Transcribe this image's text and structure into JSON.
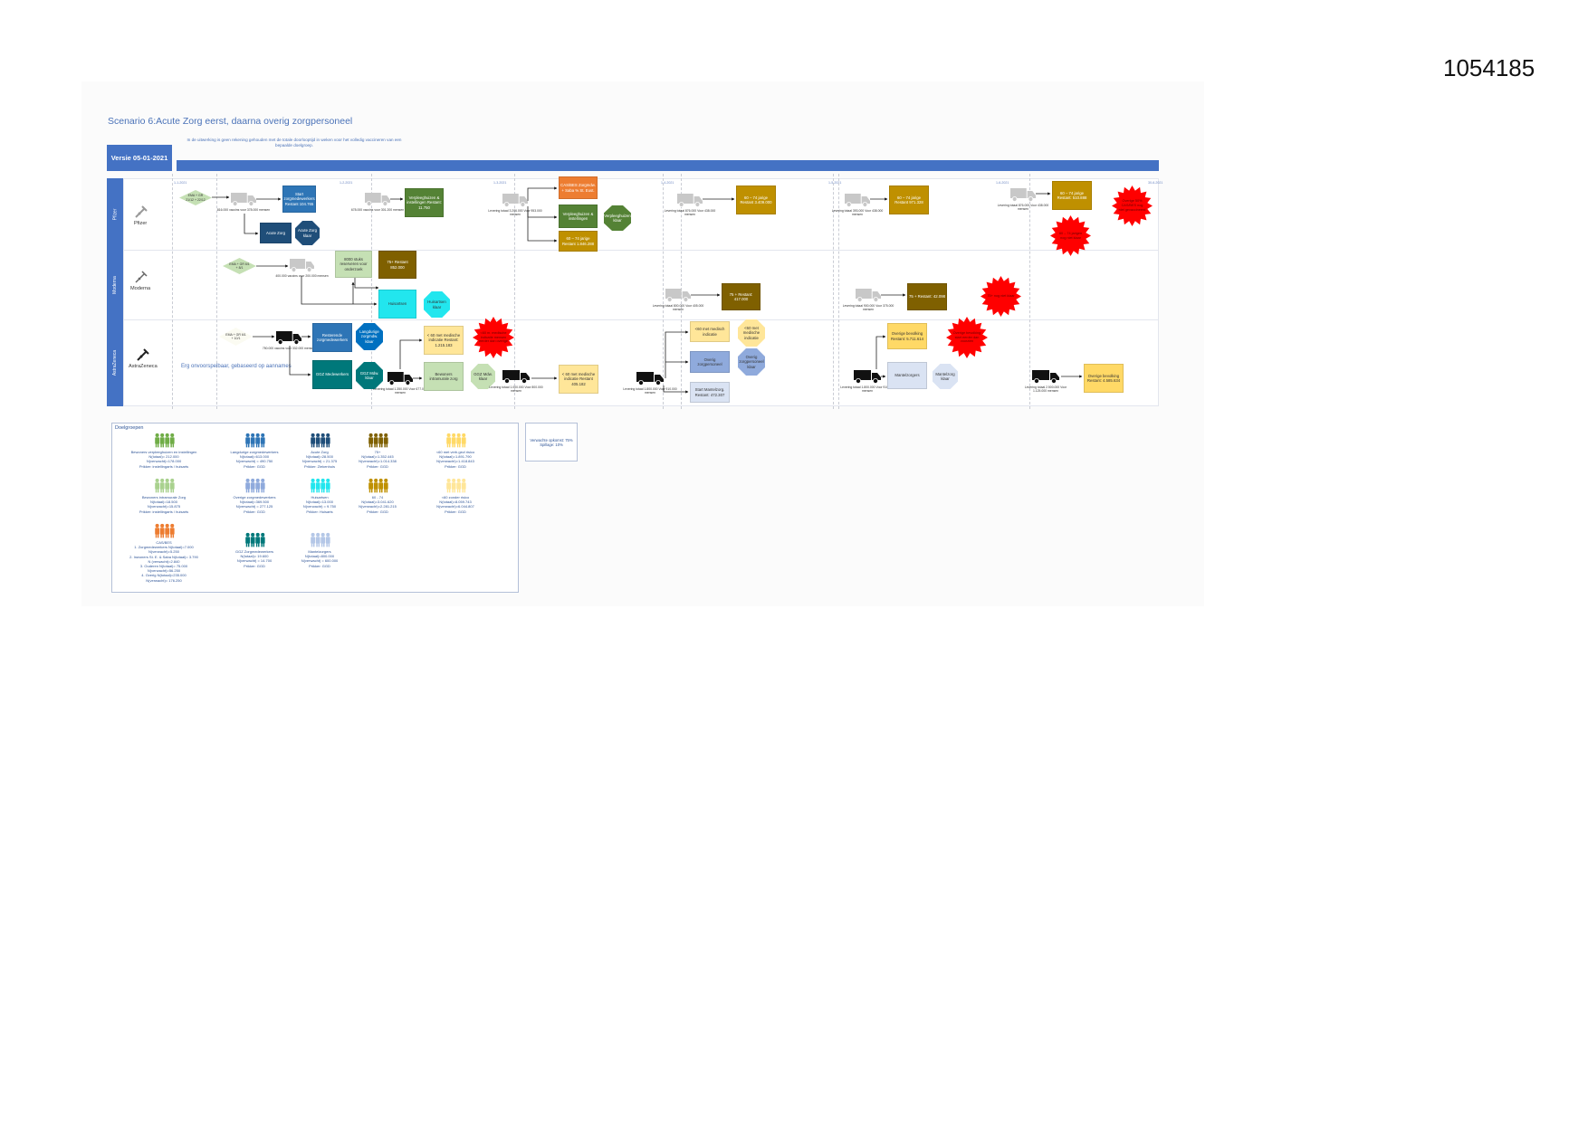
{
  "document_number": "1054185",
  "title": "Scenario 6:Acute Zorg eerst, daarna overig zorgpersoneel",
  "note": "In de uitwerking is geen rekening gehouden met de totale doorlooptijd in weken voor het volledig vaccineren van een bepaalde doelgroep.",
  "version": "Versie 05-01-2021",
  "timeline_ticks": [
    "1-1-2021",
    "1-2-2021",
    "1-3-2021",
    "1-4-2021",
    "1-5-2021",
    "1-6-2021",
    "30-6-2021"
  ],
  "lanes": [
    {
      "label": "Pfizer",
      "name": "Pfizer",
      "icon": "syringe-icon"
    },
    {
      "label": "Moderna",
      "name": "Moderna",
      "icon": "syringe-icon"
    },
    {
      "label": "AstraZeneca",
      "name": "AstraZeneca",
      "icon": "syringe-icon"
    }
  ],
  "unpredictable_note": "Erg onvoorspelbaar, gebaseerd op aannames",
  "nodes": [
    {
      "type": "diamond",
      "text": "EMA + GR 21/12 + 22/12",
      "color": "#c5e0b4"
    },
    {
      "type": "truck",
      "style": "gray",
      "caption": "816.000 vaccins voor 378.000 mensen"
    },
    {
      "type": "box",
      "text": "Start zorgmedewerkers Restant 104.765",
      "color": "#2e75b6"
    },
    {
      "type": "box",
      "text": "Acute Zorg",
      "color": "#1f4e79"
    },
    {
      "type": "octagon",
      "text": "Acute Zorg klaar",
      "color": "#1f4e79"
    },
    {
      "type": "truck",
      "style": "gray",
      "caption": "678.000 vaccins voor 301.200 mensen"
    },
    {
      "type": "box",
      "text": "Verpleeghuizen & instellingen Restant: 11.750",
      "color": "#548235"
    },
    {
      "type": "truck",
      "style": "gray",
      "caption": "Levering totaal 3.206.000 Voor 953.000 mensen"
    },
    {
      "type": "box",
      "text": "CAS/BES Zorgmdw. + Saba % St. Eust.",
      "color": "#ed7d31"
    },
    {
      "type": "box",
      "text": "Verpleeghuizen & instellingen",
      "color": "#548235"
    },
    {
      "type": "octagon",
      "text": "Verpleeghuizen klaar",
      "color": "#548235"
    },
    {
      "type": "box",
      "text": "60 – 74 jarige Restant 1.846.288",
      "color": "#bf9000"
    },
    {
      "type": "truck",
      "style": "gray",
      "caption": "Levering totaal 876.000 Voor 438.000 mensen"
    },
    {
      "type": "box",
      "text": "60 – 74 jarige Restant 3.409.000",
      "color": "#bf9000"
    },
    {
      "type": "truck",
      "style": "gray",
      "caption": "Levering totaal 393.000 Voor 438.000 mensen"
    },
    {
      "type": "box",
      "text": "60 – 74 jarige Restant 971.328",
      "color": "#bf9000"
    },
    {
      "type": "truck",
      "style": "gray",
      "caption": "Levering totaal 876.000 Voor 438.000 mensen"
    },
    {
      "type": "box",
      "text": "60 – 74 jarige Restant: 510.888",
      "color": "#bf9000"
    },
    {
      "type": "star",
      "text": "60 – 74 jarigen nog niet klaar",
      "color": "#ff0000"
    },
    {
      "type": "star",
      "text": "Overige 50% CAS/BES nog niet gevaccineerd",
      "color": "#ff0000"
    },
    {
      "type": "diamond",
      "text": "EMA + GR 6/1 + 8/1",
      "color": "#c5e0b4"
    },
    {
      "type": "truck",
      "style": "gray",
      "caption": "400.000 vaccins voor 200.000 mensen"
    },
    {
      "type": "box",
      "text": "8000 stuks reserveren voor onderzoek",
      "color": "#c5e0b4"
    },
    {
      "type": "box",
      "text": "75+ Restant 852.000",
      "color": "#7f6000"
    },
    {
      "type": "box",
      "text": "Huisartsen",
      "color": "#22e6ee"
    },
    {
      "type": "octagon",
      "text": "Huisartsen klaar",
      "color": "#22e6ee"
    },
    {
      "type": "truck",
      "style": "gray",
      "caption": "Levering totaal 800.000 Voor 405.000 mensen"
    },
    {
      "type": "box",
      "text": "75 + Restant: 417.000",
      "color": "#7f6000"
    },
    {
      "type": "truck",
      "style": "gray",
      "caption": "Levering totaal 900.000 Voor 375.000 mensen"
    },
    {
      "type": "box",
      "text": "75 + Restant: 42.098",
      "color": "#7f6000"
    },
    {
      "type": "star",
      "text": "75+ nog niet klaar",
      "color": "#ff0000"
    },
    {
      "type": "diamond",
      "text": "EMA + GR 6/1 + 10/1",
      "color": "#fbfbf2"
    },
    {
      "type": "truck",
      "style": "black",
      "caption": "750.000 vaccins voor 332.000 mensen"
    },
    {
      "type": "box",
      "text": "Resterende zorgmedewerkers",
      "color": "#2e75b6"
    },
    {
      "type": "octagon",
      "text": "Langdurige zorgmdw. klaar",
      "color": "#0070c0"
    },
    {
      "type": "box",
      "text": "GGZ Medewerkers",
      "color": "#00787a"
    },
    {
      "type": "octagon",
      "text": "GGZ Mdw. klaar",
      "color": "#00787a"
    },
    {
      "type": "truck",
      "style": "black",
      "caption": "Levering totaal 1.350.000 Voor 677.000 mensen"
    },
    {
      "type": "box",
      "text": "< 60 met medische indicatie Restant: 1.215.183",
      "color": "#ffe699"
    },
    {
      "type": "star",
      "text": "<60 m. medische indicatie mensen eerder dan overige",
      "color": "#ff0000"
    },
    {
      "type": "box",
      "text": "Bewoners intramurale zorg",
      "color": "#c5e0b4"
    },
    {
      "type": "octagon",
      "text": "GGZ Mdw. klaar",
      "color": "#c5e0b4"
    },
    {
      "type": "truck",
      "style": "black",
      "caption": "Levering totaal 1.000.000 Voor 800.000 mensen"
    },
    {
      "type": "box",
      "text": "< 60 met medische indicatie Restant 405.182",
      "color": "#ffe699"
    },
    {
      "type": "truck",
      "style": "black",
      "caption": "Levering totaal 1.800.000 Voor 910.000 mensen"
    },
    {
      "type": "box",
      "text": "<60 met medisch indicatie",
      "color": "#ffe699"
    },
    {
      "type": "octagon",
      "text": "<60 met medische indicatie",
      "color": "#ffe699"
    },
    {
      "type": "box",
      "text": "Overig zorgpersoneel",
      "color": "#8faadc"
    },
    {
      "type": "octagon",
      "text": "Overig zorgpersoneel klaar",
      "color": "#8faadc"
    },
    {
      "type": "box",
      "text": "Start Mantelzorg. Restant: 472.307",
      "color": "#dae3f3"
    },
    {
      "type": "truck",
      "style": "black",
      "caption": "Levering totaal 1.800.000 Voor 910.000 mensen"
    },
    {
      "type": "box",
      "text": "Overige bevolking Restant: 5.711.614",
      "color": "#ffd966"
    },
    {
      "type": "star",
      "text": "Overige bevolking start eerder dan voorzien",
      "color": "#ff0000"
    },
    {
      "type": "box",
      "text": "Mantelzorgers",
      "color": "#dae3f3"
    },
    {
      "type": "octagon",
      "text": "Mantelzorg klaar",
      "color": "#dae3f3"
    },
    {
      "type": "truck",
      "style": "black",
      "caption": "Levering totaal 2.500.000 Voor 1.125.000 mensen"
    },
    {
      "type": "box",
      "text": "Overige bevolking Restant: 4.585.634",
      "color": "#ffd966"
    }
  ],
  "legend": {
    "title": "Doelgroepen",
    "groups": [
      {
        "color": "#70ad47",
        "lines": [
          "Bewoners verpleeghuizen en instellingen",
          "N(totaal)= 212.000",
          "N(verwacht)=178.000",
          "Prikker: instellingarts / huisarts"
        ]
      },
      {
        "color": "#2e75b6",
        "lines": [
          "Langdurige zorgmedewerkers",
          "N(totaal)=613.000",
          "N(verwacht) = 490.750",
          "Prikker: GGD"
        ]
      },
      {
        "color": "#1f4e79",
        "lines": [
          "Acute Zorg",
          "N(totaal)=28.500",
          "N(verwacht) = 21.375",
          "Prikker: Ziekenhuis"
        ]
      },
      {
        "color": "#7f6000",
        "lines": [
          "75+",
          "N(totaal)=1.352.445",
          "N(verwacht)=1.014.338",
          "Prikker: GGD"
        ]
      },
      {
        "color": "#ffd966",
        "lines": [
          "<60 met verh.gezl risico",
          "N(totaal)=1.891.790",
          "N(verwacht)=1.418.843",
          "Prikker: GGD"
        ]
      },
      {
        "color": "#a9d18e",
        "lines": [
          "Bewoners intramurale Zorg",
          "N(totaal)=18.500",
          "N(verwacht)=15.875",
          "Prikker: instellingarts / huisarts"
        ]
      },
      {
        "color": "#8faadc",
        "lines": [
          "Overige zorgmedewerkers",
          "N(totaal)=369.500",
          "N(verwacht) = 277.125",
          "Prikker: GGD"
        ]
      },
      {
        "color": "#22e6ee",
        "lines": [
          "Huisartsen",
          "N(totaal)=13.000",
          "N(verwacht) = 9.750",
          "Prikker: Huisarts"
        ]
      },
      {
        "color": "#bf9000",
        "lines": [
          "60 - 74",
          "N(totaal)=3.041.620",
          "N(verwacht)=2.281.215",
          "Prikker: GGD"
        ]
      },
      {
        "color": "#ffe699",
        "lines": [
          "<60 zonder risico",
          "N(totaal)=8.059.743",
          "N(verwacht)=6.044.807",
          "Prikker: GGD"
        ]
      },
      {
        "color": "#ed7d31",
        "lines": [
          "CAS/BES",
          "1. Zorgmedewerkers N(totaal)=7.000",
          "N(verwacht)=5.250",
          "2. Inwoners St. E. & Saba N(totaal)= 3.790",
          "N (verwacht)=2.840",
          "3. Ouderen N(totaal)= 75.000",
          "N(verwacht)=56.250",
          "4. Overig N(totaal)=235.000",
          "N(verwacht)= 176.250"
        ]
      },
      {
        "color": "#00787a",
        "lines": [
          "GGZ Zorgmedewerkers",
          "N(totaal)= 19.600",
          "N(verwacht) = 14.700",
          "Prikker: GGD"
        ]
      },
      {
        "color": "#b4c7e7",
        "lines": [
          "Mantelzorgers",
          "N(totaal)=800.000",
          "N(verwacht) = 600.000",
          "Prikker: GGD"
        ]
      }
    ]
  },
  "opkomst": "Verwachte opkomst: 75% Spillage: 10%"
}
